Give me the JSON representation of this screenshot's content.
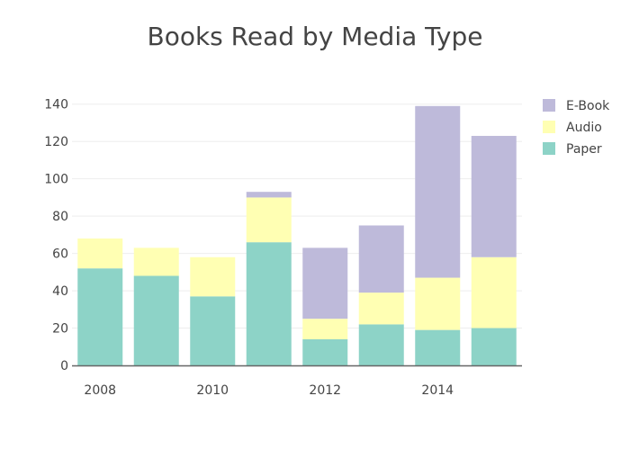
{
  "chart_data": {
    "type": "bar",
    "stacked": true,
    "title": "Books Read by Media Type",
    "xlabel": "",
    "ylabel": "",
    "x": [
      2008,
      2009,
      2010,
      2011,
      2012,
      2013,
      2014,
      2015
    ],
    "x_tick_labels": [
      "2008",
      "2010",
      "2012",
      "2014"
    ],
    "x_tick_values": [
      2008,
      2010,
      2012,
      2014
    ],
    "xlim": [
      2007.5,
      2015.5
    ],
    "y_ticks": [
      0,
      20,
      40,
      60,
      80,
      100,
      120,
      140
    ],
    "ylim": [
      0,
      150
    ],
    "grid": true,
    "legend_position": "top-right",
    "series": [
      {
        "name": "Paper",
        "color": "#8dd3c7",
        "values": [
          52,
          48,
          37,
          66,
          14,
          22,
          19,
          20
        ]
      },
      {
        "name": "Audio",
        "color": "#ffffb3",
        "values": [
          16,
          15,
          21,
          24,
          11,
          17,
          28,
          38
        ]
      },
      {
        "name": "E-Book",
        "color": "#bebada",
        "values": [
          0,
          0,
          0,
          3,
          38,
          36,
          92,
          65
        ]
      }
    ],
    "legend_order": [
      "E-Book",
      "Audio",
      "Paper"
    ]
  }
}
